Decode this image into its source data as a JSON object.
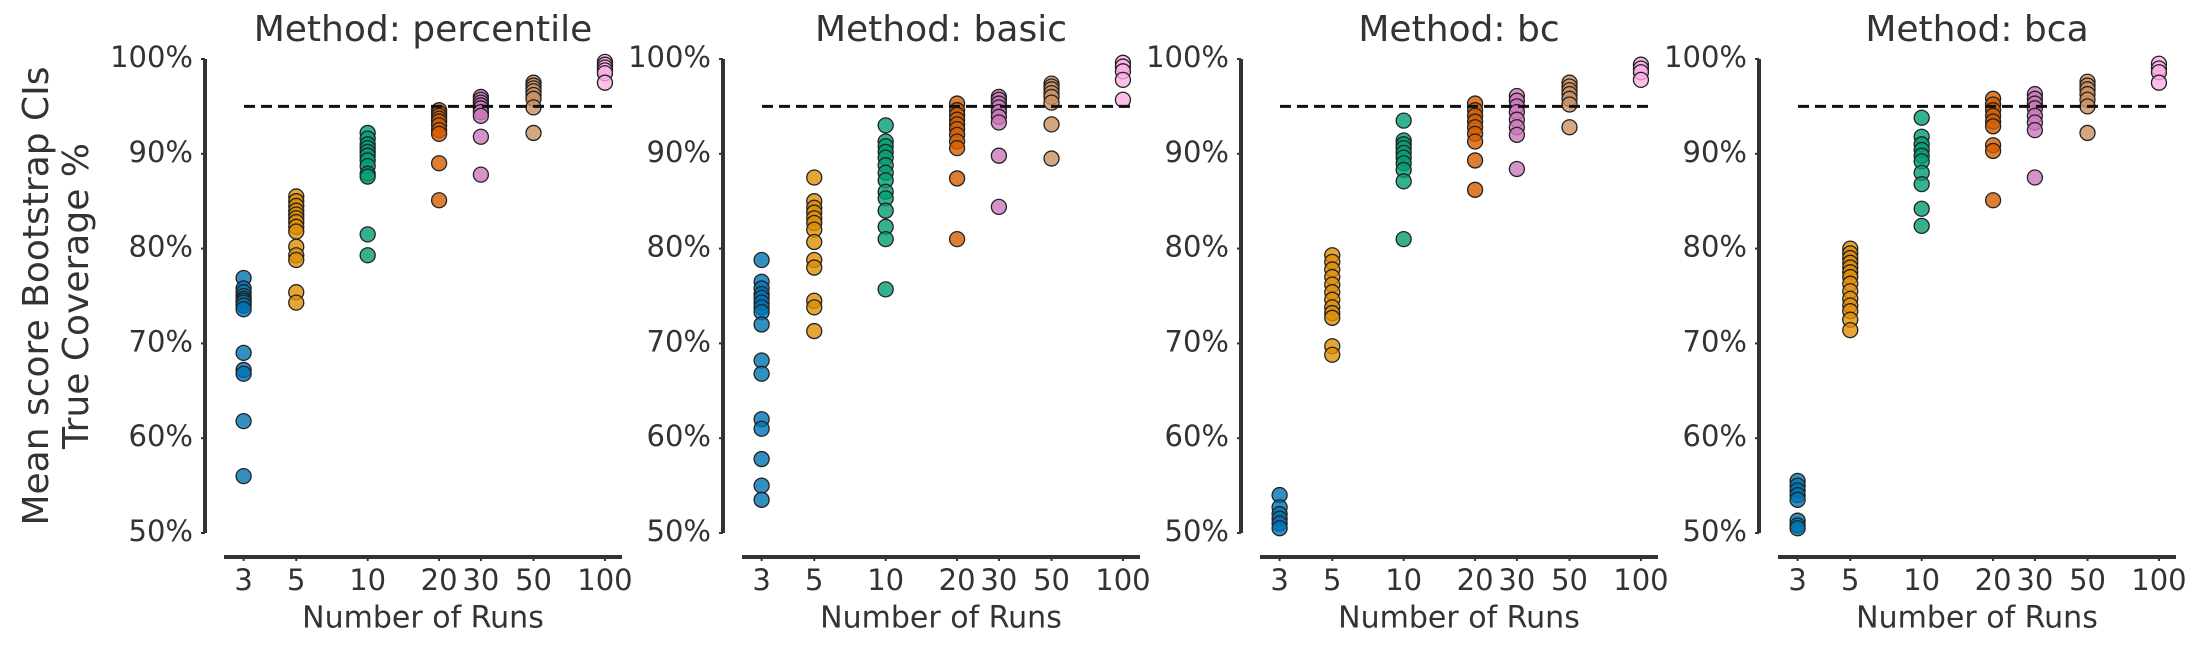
{
  "chart_data": [
    {
      "type": "scatter",
      "title": "Method: percentile",
      "xlabel": "Number of Runs",
      "ylabel": [
        "Mean score Bootstrap CIs",
        "True Coverage %"
      ],
      "xscale": "log",
      "xlim": [
        2.48,
        118
      ],
      "xticks": [
        3,
        5,
        10,
        20,
        30,
        50,
        100
      ],
      "ylim": [
        50,
        100
      ],
      "yticks": [
        {
          "value": 50,
          "label": "50%"
        },
        {
          "value": 60,
          "label": "60%"
        },
        {
          "value": 70,
          "label": "70%"
        },
        {
          "value": 80,
          "label": "80%"
        },
        {
          "value": 90,
          "label": "90%"
        },
        {
          "value": 100,
          "label": "100%"
        }
      ],
      "hline": 95,
      "series": [
        {
          "color": "#0173b2",
          "x": 3,
          "values": [
            76.9,
            75.8,
            75.4,
            75.0,
            74.7,
            74.5,
            74.3,
            74.0,
            73.6,
            69.0,
            67.2,
            66.8,
            61.8,
            56.0
          ]
        },
        {
          "color": "#de8f05",
          "x": 5,
          "values": [
            85.5,
            85.0,
            84.5,
            84.0,
            83.6,
            83.2,
            82.8,
            82.3,
            81.8,
            80.2,
            79.3,
            78.8,
            75.4,
            74.3
          ]
        },
        {
          "color": "#029e73",
          "x": 10,
          "values": [
            92.2,
            91.6,
            91.0,
            90.6,
            90.2,
            89.8,
            89.3,
            88.7,
            87.9,
            87.6,
            81.5,
            79.3
          ]
        },
        {
          "color": "#d55e00",
          "x": 20,
          "values": [
            94.6,
            94.3,
            94.0,
            93.7,
            93.4,
            93.0,
            92.5,
            92.1,
            89.0,
            85.1
          ]
        },
        {
          "color": "#cc78bc",
          "x": 30,
          "values": [
            96.0,
            95.7,
            95.4,
            95.1,
            94.8,
            94.4,
            94.0,
            91.8,
            87.8
          ]
        },
        {
          "color": "#ca9161",
          "x": 50,
          "values": [
            97.5,
            97.2,
            96.9,
            96.6,
            96.2,
            95.8,
            94.9,
            92.2
          ]
        },
        {
          "color": "#fbafe4",
          "x": 100,
          "values": [
            99.7,
            99.4,
            99.1,
            98.8,
            98.5,
            97.5
          ]
        }
      ]
    },
    {
      "type": "scatter",
      "title": "Method: basic",
      "xlabel": "Number of Runs",
      "xscale": "log",
      "xlim": [
        2.48,
        118
      ],
      "xticks": [
        3,
        5,
        10,
        20,
        30,
        50,
        100
      ],
      "ylim": [
        50,
        100
      ],
      "yticks": [
        {
          "value": 50,
          "label": "50%"
        },
        {
          "value": 60,
          "label": "60%"
        },
        {
          "value": 70,
          "label": "70%"
        },
        {
          "value": 80,
          "label": "80%"
        },
        {
          "value": 90,
          "label": "90%"
        },
        {
          "value": 100,
          "label": "100%"
        }
      ],
      "hline": 95,
      "series": [
        {
          "color": "#0173b2",
          "x": 3,
          "values": [
            78.8,
            76.5,
            75.8,
            75.2,
            74.8,
            74.3,
            73.8,
            73.3,
            72.0,
            68.2,
            66.8,
            62.0,
            61.0,
            57.8,
            55.0,
            53.5
          ]
        },
        {
          "color": "#de8f05",
          "x": 5,
          "values": [
            87.5,
            85.0,
            84.3,
            83.8,
            83.2,
            82.7,
            82.0,
            80.7,
            78.8,
            78.0,
            74.5,
            73.8,
            71.3
          ]
        },
        {
          "color": "#029e73",
          "x": 10,
          "values": [
            93.0,
            91.3,
            90.8,
            90.2,
            89.6,
            88.8,
            88.0,
            87.2,
            86.0,
            85.3,
            84.0,
            82.3,
            81.0,
            75.7
          ]
        },
        {
          "color": "#d55e00",
          "x": 20,
          "values": [
            95.3,
            94.6,
            94.1,
            93.6,
            93.1,
            92.6,
            92.0,
            91.3,
            90.6,
            87.4,
            81.0
          ]
        },
        {
          "color": "#cc78bc",
          "x": 30,
          "values": [
            96.0,
            95.7,
            95.3,
            94.9,
            94.4,
            93.9,
            93.3,
            89.8,
            84.4
          ]
        },
        {
          "color": "#ca9161",
          "x": 50,
          "values": [
            97.4,
            97.1,
            96.8,
            96.4,
            96.0,
            95.4,
            93.1,
            89.5
          ]
        },
        {
          "color": "#fbafe4",
          "x": 100,
          "values": [
            99.6,
            99.2,
            98.7,
            97.8,
            95.7
          ]
        }
      ]
    },
    {
      "type": "scatter",
      "title": "Method: bc",
      "xlabel": "Number of Runs",
      "xscale": "log",
      "xlim": [
        2.48,
        118
      ],
      "xticks": [
        3,
        5,
        10,
        20,
        30,
        50,
        100
      ],
      "ylim": [
        50,
        100
      ],
      "yticks": [
        {
          "value": 50,
          "label": "50%"
        },
        {
          "value": 60,
          "label": "60%"
        },
        {
          "value": 70,
          "label": "70%"
        },
        {
          "value": 80,
          "label": "80%"
        },
        {
          "value": 90,
          "label": "90%"
        },
        {
          "value": 100,
          "label": "100%"
        }
      ],
      "hline": 95,
      "series": [
        {
          "color": "#0173b2",
          "x": 3,
          "values": [
            54.0,
            52.7,
            52.0,
            51.5,
            51.0,
            50.5
          ]
        },
        {
          "color": "#de8f05",
          "x": 5,
          "values": [
            79.3,
            78.6,
            77.8,
            77.0,
            76.2,
            75.4,
            74.6,
            73.8,
            73.2,
            72.7,
            69.7,
            68.8
          ]
        },
        {
          "color": "#029e73",
          "x": 10,
          "values": [
            93.5,
            91.4,
            91.0,
            90.6,
            90.1,
            89.6,
            89.0,
            88.3,
            87.1,
            81.0
          ]
        },
        {
          "color": "#d55e00",
          "x": 20,
          "values": [
            95.3,
            94.6,
            94.0,
            93.4,
            92.8,
            92.1,
            91.3,
            89.3,
            86.2
          ]
        },
        {
          "color": "#cc78bc",
          "x": 30,
          "values": [
            96.1,
            95.6,
            95.0,
            94.4,
            93.6,
            92.8,
            92.0,
            88.4
          ]
        },
        {
          "color": "#ca9161",
          "x": 50,
          "values": [
            97.5,
            97.1,
            96.7,
            96.3,
            95.8,
            95.2,
            92.8
          ]
        },
        {
          "color": "#fbafe4",
          "x": 100,
          "values": [
            99.4,
            99.0,
            98.6,
            97.8
          ]
        }
      ]
    },
    {
      "type": "scatter",
      "title": "Method: bca",
      "xlabel": "Number of Runs",
      "xscale": "log",
      "xlim": [
        2.48,
        118
      ],
      "xticks": [
        3,
        5,
        10,
        20,
        30,
        50,
        100
      ],
      "ylim": [
        50,
        100
      ],
      "yticks": [
        {
          "value": 50,
          "label": "50%"
        },
        {
          "value": 60,
          "label": "60%"
        },
        {
          "value": 70,
          "label": "70%"
        },
        {
          "value": 80,
          "label": "80%"
        },
        {
          "value": 90,
          "label": "90%"
        },
        {
          "value": 100,
          "label": "100%"
        }
      ],
      "hline": 95,
      "series": [
        {
          "color": "#0173b2",
          "x": 3,
          "values": [
            55.5,
            55.0,
            54.5,
            54.0,
            53.5,
            51.3,
            50.8,
            50.5
          ]
        },
        {
          "color": "#de8f05",
          "x": 5,
          "values": [
            80.0,
            79.5,
            79.0,
            78.5,
            78.0,
            77.5,
            77.0,
            76.3,
            75.5,
            74.7,
            74.0,
            73.4,
            72.5,
            71.4
          ]
        },
        {
          "color": "#029e73",
          "x": 10,
          "values": [
            93.8,
            91.8,
            91.0,
            90.4,
            89.8,
            89.2,
            88.0,
            86.8,
            84.2,
            82.4
          ]
        },
        {
          "color": "#d55e00",
          "x": 20,
          "values": [
            95.8,
            95.2,
            94.6,
            94.0,
            93.4,
            92.9,
            90.9,
            90.3,
            85.1
          ]
        },
        {
          "color": "#cc78bc",
          "x": 30,
          "values": [
            96.3,
            95.8,
            95.3,
            94.8,
            94.0,
            93.3,
            92.5,
            87.5
          ]
        },
        {
          "color": "#ca9161",
          "x": 50,
          "values": [
            97.6,
            97.2,
            96.8,
            96.3,
            95.7,
            95.0,
            92.2
          ]
        },
        {
          "color": "#fbafe4",
          "x": 100,
          "values": [
            99.5,
            99.0,
            98.6,
            97.5
          ]
        }
      ]
    }
  ]
}
